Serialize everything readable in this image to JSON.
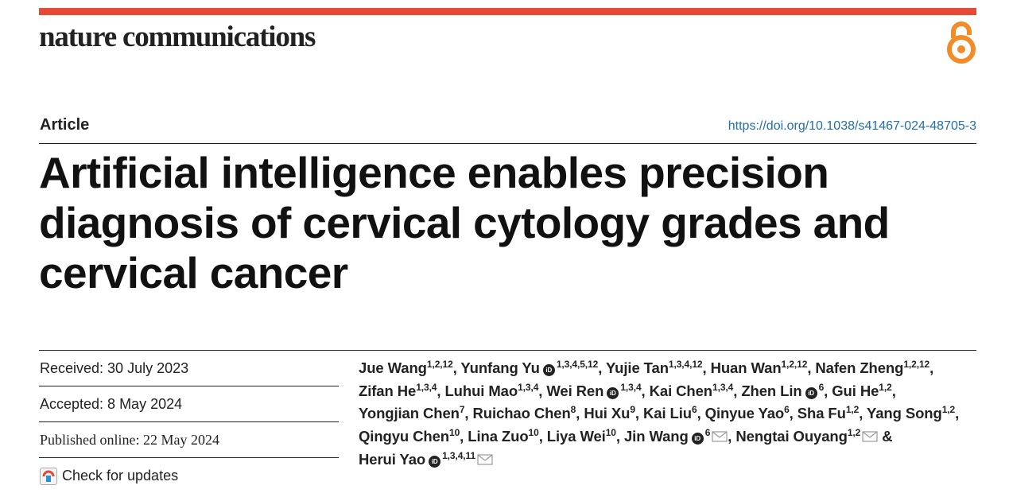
{
  "header": {
    "journal": "nature communications",
    "accent_color": "#e64a36",
    "open_access_icon": "open-access-icon"
  },
  "article": {
    "type": "Article",
    "doi": "https://doi.org/10.1038/s41467-024-48705-3",
    "title": "Artificial intelligence enables precision diagnosis of cervical cytology grades and cervical cancer"
  },
  "dates": {
    "received": "Received: 30 July 2023",
    "accepted": "Accepted: 8 May 2024",
    "published": "Published online: 22 May 2024",
    "check_updates": "Check for updates"
  },
  "authors": [
    {
      "name": "Jue Wang",
      "sup": "1,2,12",
      "orcid": false,
      "mail": false
    },
    {
      "name": "Yunfang Yu",
      "sup": "1,3,4,5,12",
      "orcid": true,
      "mail": false
    },
    {
      "name": "Yujie Tan",
      "sup": "1,3,4,12",
      "orcid": false,
      "mail": false
    },
    {
      "name": "Huan Wan",
      "sup": "1,2,12",
      "orcid": false,
      "mail": false
    },
    {
      "name": "Nafen Zheng",
      "sup": "1,2,12",
      "orcid": false,
      "mail": false
    },
    {
      "name": "Zifan He",
      "sup": "1,3,4",
      "orcid": false,
      "mail": false
    },
    {
      "name": "Luhui Mao",
      "sup": "1,3,4",
      "orcid": false,
      "mail": false
    },
    {
      "name": "Wei Ren",
      "sup": "1,3,4",
      "orcid": true,
      "mail": false
    },
    {
      "name": "Kai Chen",
      "sup": "1,3,4",
      "orcid": false,
      "mail": false
    },
    {
      "name": "Zhen Lin",
      "sup": "6",
      "orcid": true,
      "mail": false
    },
    {
      "name": "Gui He",
      "sup": "1,2",
      "orcid": false,
      "mail": false
    },
    {
      "name": "Yongjian Chen",
      "sup": "7",
      "orcid": false,
      "mail": false
    },
    {
      "name": "Ruichao Chen",
      "sup": "8",
      "orcid": false,
      "mail": false
    },
    {
      "name": "Hui Xu",
      "sup": "9",
      "orcid": false,
      "mail": false
    },
    {
      "name": "Kai Liu",
      "sup": "6",
      "orcid": false,
      "mail": false
    },
    {
      "name": "Qinyue Yao",
      "sup": "6",
      "orcid": false,
      "mail": false
    },
    {
      "name": "Sha Fu",
      "sup": "1,2",
      "orcid": false,
      "mail": false
    },
    {
      "name": "Yang Song",
      "sup": "1,2",
      "orcid": false,
      "mail": false
    },
    {
      "name": "Qingyu Chen",
      "sup": "10",
      "orcid": false,
      "mail": false
    },
    {
      "name": "Lina Zuo",
      "sup": "10",
      "orcid": false,
      "mail": false
    },
    {
      "name": "Liya Wei",
      "sup": "10",
      "orcid": false,
      "mail": false
    },
    {
      "name": "Jin Wang",
      "sup": "6",
      "orcid": true,
      "mail": true
    },
    {
      "name": "Nengtai Ouyang",
      "sup": "1,2",
      "orcid": false,
      "mail": true
    },
    {
      "name": "Herui Yao",
      "sup": "1,3,4,11",
      "orcid": true,
      "mail": true
    }
  ],
  "author_separator": ", ",
  "last_author_separator": " & "
}
